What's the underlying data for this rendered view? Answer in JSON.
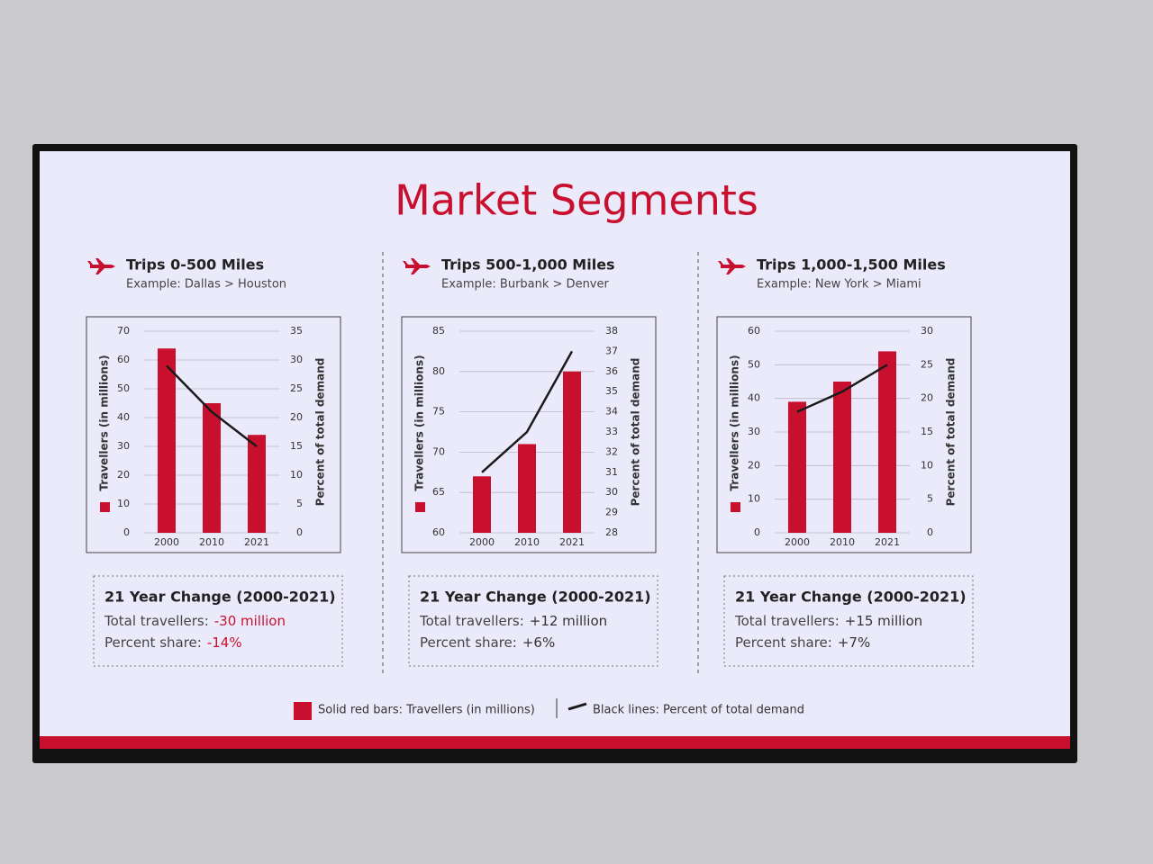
{
  "title": "Market Segments",
  "legend": [
    {
      "label": "Solid red bars: Travellers (in millions)",
      "color": "#c8102e",
      "kind": "bar"
    },
    {
      "label": "Black lines: Percent of total demand",
      "color": "#1a1a1a",
      "kind": "line"
    }
  ],
  "chart_data": [
    {
      "type": "bar-line",
      "title": "Trips 0-500 Miles",
      "subtitle": "Example: Dallas > Houston",
      "categories": [
        "2000",
        "2010",
        "2021"
      ],
      "series": [
        {
          "color": "#c8102e",
          "values": [
            64,
            45,
            34
          ]
        },
        {
          "color": "#1a1a1a",
          "values": [
            29,
            21,
            15
          ],
          "axis": "y2"
        }
      ],
      "y_label": "Travellers (in millions)",
      "y2_label": "Percent of total demand",
      "ylim": [
        0,
        70
      ],
      "yticks": [
        0,
        10,
        20,
        30,
        40,
        50,
        60,
        70
      ],
      "y2lim": [
        0,
        35
      ],
      "y2ticks": [
        0,
        5,
        10,
        15,
        20,
        25,
        30,
        35
      ],
      "grid": true,
      "summary": {
        "heading": "21 Year Change (2000-2021)",
        "rows": [
          {
            "label": "Total travellers:",
            "value": "-30 million",
            "color": "#c8102e"
          },
          {
            "label": "Percent share:",
            "value": "-14%",
            "color": "#c8102e"
          }
        ]
      }
    },
    {
      "type": "bar-line",
      "title": "Trips 500-1,000 Miles",
      "subtitle": "Example: Burbank > Denver",
      "categories": [
        "2000",
        "2010",
        "2021"
      ],
      "series": [
        {
          "color": "#c8102e",
          "values": [
            67,
            71,
            80
          ]
        },
        {
          "color": "#1a1a1a",
          "values": [
            31,
            33,
            37
          ],
          "axis": "y2"
        }
      ],
      "y_label": "Travellers (in millions)",
      "y2_label": "Percent of total demand",
      "ylim": [
        60,
        85
      ],
      "yticks": [
        60,
        65,
        70,
        75,
        80,
        85
      ],
      "y2lim": [
        28,
        38
      ],
      "y2ticks": [
        28,
        29,
        30,
        31,
        32,
        33,
        34,
        35,
        36,
        37,
        38
      ],
      "grid": true,
      "summary": {
        "heading": "21 Year Change (2000-2021)",
        "rows": [
          {
            "label": "Total travellers:",
            "value": "+12 million",
            "color": "#333333"
          },
          {
            "label": "Percent share:",
            "value": "+6%",
            "color": "#333333"
          }
        ]
      }
    },
    {
      "type": "bar-line",
      "title": "Trips 1,000-1,500 Miles",
      "subtitle": "Example: New York > Miami",
      "categories": [
        "2000",
        "2010",
        "2021"
      ],
      "series": [
        {
          "color": "#c8102e",
          "values": [
            39,
            45,
            54
          ]
        },
        {
          "color": "#1a1a1a",
          "values": [
            18,
            21,
            25
          ],
          "axis": "y2"
        }
      ],
      "y_label": "Travellers (in millions)",
      "y2_label": "Percent of total demand",
      "ylim": [
        0,
        60
      ],
      "yticks": [
        0,
        10,
        20,
        30,
        40,
        50,
        60
      ],
      "y2lim": [
        0,
        30
      ],
      "y2ticks": [
        0,
        5,
        10,
        15,
        20,
        25,
        30
      ],
      "grid": true,
      "summary": {
        "heading": "21 Year Change (2000-2021)",
        "rows": [
          {
            "label": "Total travellers:",
            "value": "+15 million",
            "color": "#333333"
          },
          {
            "label": "Percent share:",
            "value": "+7%",
            "color": "#333333"
          }
        ]
      }
    }
  ]
}
